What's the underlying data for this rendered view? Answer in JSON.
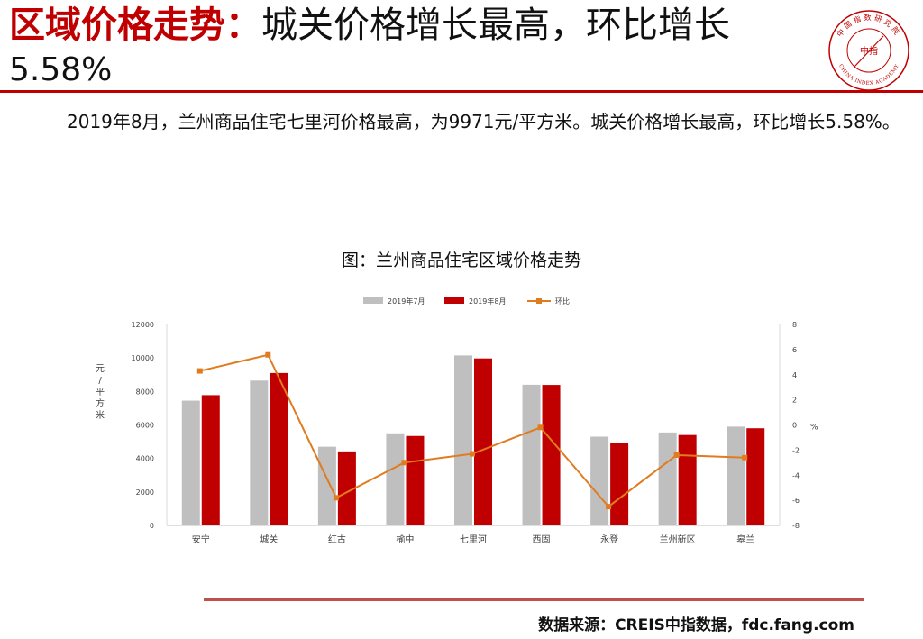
{
  "slide": {
    "title_accent": "区域价格走势：",
    "title_rest": "城关价格增长最高，环比增长",
    "title_line2": "5.58%",
    "body": "2019年8月，兰州商品住宅七里河价格最高，为9971元/平方米。城关价格增长最高，环比增长5.58%。",
    "chart_caption": "图：兰州商品住宅区域价格走势",
    "source": "数据来源：CREIS中指数据，fdc.fang.com"
  },
  "logo": {
    "top_text": "中国指数研究院",
    "bottom_text": "CHINA INDEX ACADEMY",
    "center_text": "中指"
  },
  "colors": {
    "accent": "#c00000",
    "series_jul": "#bfbfbf",
    "series_aug": "#c00000",
    "series_mom": "#e07b1f",
    "rule_bottom": "#c0504d"
  },
  "chart_data": {
    "type": "bar",
    "categories": [
      "安宁",
      "城关",
      "红古",
      "榆中",
      "七里河",
      "西固",
      "永登",
      "兰州新区",
      "皋兰"
    ],
    "series": [
      {
        "name": "2019年7月",
        "type": "bar",
        "axis": "left",
        "values": [
          7450,
          8650,
          4700,
          5500,
          10150,
          8400,
          5300,
          5550,
          5900
        ]
      },
      {
        "name": "2019年8月",
        "type": "bar",
        "axis": "left",
        "values": [
          7780,
          9100,
          4420,
          5340,
          9971,
          8390,
          4930,
          5400,
          5800
        ]
      },
      {
        "name": "环比",
        "type": "line",
        "axis": "right",
        "values": [
          4.3,
          5.58,
          -5.8,
          -3.0,
          -2.3,
          -0.2,
          -6.5,
          -2.4,
          -2.6
        ]
      }
    ],
    "ylabel": "元/平方米",
    "y2label": "%",
    "ylim": [
      0,
      12000
    ],
    "yticks": [
      "0",
      "2000",
      "4000",
      "6000",
      "8000",
      "10000",
      "12000"
    ],
    "y2lim": [
      -8,
      8
    ],
    "y2ticks": [
      "-8",
      "-6",
      "-4",
      "-2",
      "0",
      "2",
      "4",
      "6",
      "8"
    ],
    "legend_position": "top",
    "grid": false
  }
}
